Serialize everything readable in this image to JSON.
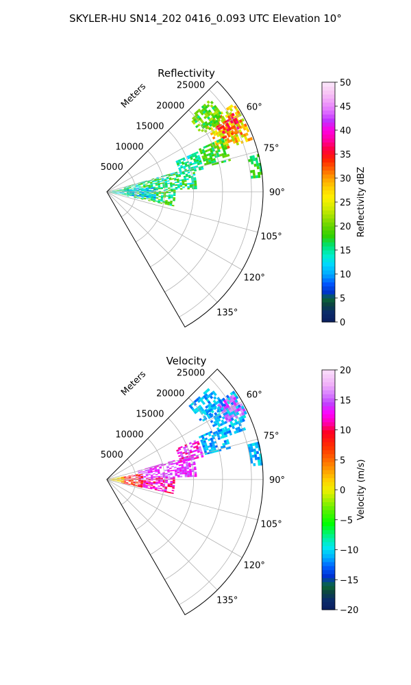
{
  "figure": {
    "title": "SKYLER-HU  SN14_202  0416_0.093 UTC Elevation 10°"
  },
  "chart_data": [
    {
      "type": "heatmap",
      "projection": "polar-sector",
      "title": "Reflectivity",
      "radial_label": "Meters",
      "radial_ticks": [
        5000,
        10000,
        15000,
        20000,
        25000
      ],
      "radial_tick_labels": [
        "5000",
        "10000",
        "15000",
        "20000",
        "25000"
      ],
      "radial_max": 27000,
      "azimuth_range_deg": [
        45,
        150
      ],
      "azimuth_ticks": [
        60,
        75,
        90,
        105,
        120,
        135
      ],
      "azimuth_tick_labels": [
        "60°",
        "75°",
        "90°",
        "105°",
        "120°",
        "135°"
      ],
      "grid": true,
      "colorbar": {
        "label": "Reflectivity dBZ",
        "range": [
          0,
          50
        ],
        "ticks": [
          0,
          5,
          10,
          15,
          20,
          25,
          30,
          35,
          40,
          45,
          50
        ],
        "tick_labels": [
          "0",
          "5",
          "10",
          "15",
          "20",
          "25",
          "30",
          "35",
          "40",
          "45",
          "50"
        ],
        "colormap": "pyart_HomeyerRainbow"
      },
      "echo_regions": [
        {
          "az": [
            55,
            70
          ],
          "r": [
            20500,
            26500
          ],
          "value": 27,
          "spread": 6
        },
        {
          "az": [
            58,
            65
          ],
          "r": [
            22000,
            25500
          ],
          "value": 34,
          "spread": 4
        },
        {
          "az": [
            48,
            58
          ],
          "r": [
            19000,
            24000
          ],
          "value": 19,
          "spread": 4
        },
        {
          "az": [
            65,
            75
          ],
          "r": [
            17500,
            22000
          ],
          "value": 18,
          "spread": 3
        },
        {
          "az": [
            74,
            88
          ],
          "r": [
            3000,
            15500
          ],
          "value": 16,
          "spread": 4
        },
        {
          "az": [
            88,
            102
          ],
          "r": [
            3500,
            11500
          ],
          "value": 17,
          "spread": 4
        },
        {
          "az": [
            84,
            99
          ],
          "r": [
            3500,
            8500
          ],
          "value": 11,
          "spread": 3
        },
        {
          "az": [
            80,
            100
          ],
          "r": [
            500,
            3500
          ],
          "value": 14,
          "spread": 5
        },
        {
          "az": [
            76,
            84
          ],
          "r": [
            25000,
            26800
          ],
          "value": 17,
          "spread": 3
        },
        {
          "az": [
            66,
            76
          ],
          "r": [
            13000,
            17000
          ],
          "value": 15,
          "spread": 3
        }
      ]
    },
    {
      "type": "heatmap",
      "projection": "polar-sector",
      "title": "Velocity",
      "radial_label": "Meters",
      "radial_ticks": [
        5000,
        10000,
        15000,
        20000,
        25000
      ],
      "radial_tick_labels": [
        "5000",
        "10000",
        "15000",
        "20000",
        "25000"
      ],
      "radial_max": 27000,
      "azimuth_range_deg": [
        45,
        150
      ],
      "azimuth_ticks": [
        60,
        75,
        90,
        105,
        120,
        135
      ],
      "azimuth_tick_labels": [
        "60°",
        "75°",
        "90°",
        "105°",
        "120°",
        "135°"
      ],
      "grid": true,
      "colorbar": {
        "label": "Velocity (m/s)",
        "range": [
          -20,
          20
        ],
        "ticks": [
          -20,
          -15,
          -10,
          -5,
          0,
          5,
          10,
          15,
          20
        ],
        "tick_labels": [
          "−20",
          "−15",
          "−10",
          "−5",
          "0",
          "5",
          "10",
          "15",
          "20"
        ],
        "colormap": "pyart_BuDRd18"
      },
      "echo_regions": [
        {
          "az": [
            55,
            70
          ],
          "r": [
            20500,
            26500
          ],
          "value": -11,
          "spread": 2
        },
        {
          "az": [
            56,
            64
          ],
          "r": [
            23000,
            26500
          ],
          "value": 15,
          "spread": 2
        },
        {
          "az": [
            48,
            58
          ],
          "r": [
            19000,
            24000
          ],
          "value": -11,
          "spread": 2
        },
        {
          "az": [
            65,
            75
          ],
          "r": [
            17500,
            22000
          ],
          "value": -11,
          "spread": 2
        },
        {
          "az": [
            74,
            88
          ],
          "r": [
            5500,
            15500
          ],
          "value": 14,
          "spread": 2
        },
        {
          "az": [
            88,
            102
          ],
          "r": [
            5500,
            11500
          ],
          "value": 12,
          "spread": 3
        },
        {
          "az": [
            80,
            102
          ],
          "r": [
            2500,
            6000
          ],
          "value": 8,
          "spread": 3
        },
        {
          "az": [
            80,
            100
          ],
          "r": [
            500,
            3000
          ],
          "value": 1,
          "spread": 3
        },
        {
          "az": [
            76,
            84
          ],
          "r": [
            25000,
            26800
          ],
          "value": -11,
          "spread": 2
        },
        {
          "az": [
            66,
            76
          ],
          "r": [
            13000,
            17000
          ],
          "value": 13,
          "spread": 3
        }
      ]
    }
  ]
}
